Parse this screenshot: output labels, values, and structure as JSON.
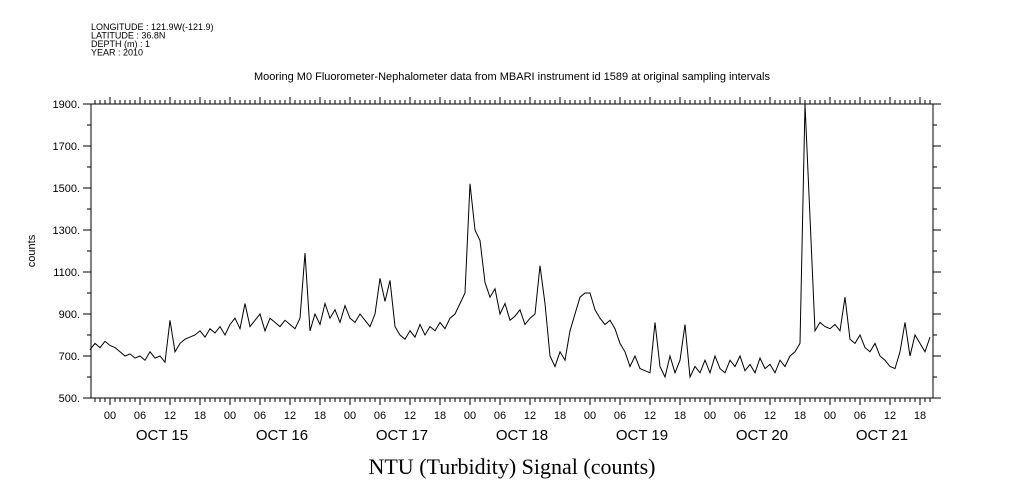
{
  "chart_data": {
    "type": "line",
    "meta": [
      "LONGITUDE : 121.9W(-121.9)",
      "LATITUDE : 36.8N",
      "DEPTH (m) : 1",
      "YEAR : 2010"
    ],
    "title": "Mooring M0 Fluorometer-Nephalometer data from MBARI instrument id 1589 at original sampling intervals",
    "xlabel": "NTU (Turbidity) Signal (counts)",
    "ylabel": "counts",
    "ylim": [
      500,
      1900
    ],
    "yticks": [
      500,
      700,
      900,
      1100,
      1300,
      1500,
      1700,
      1900
    ],
    "ytick_labels": [
      "500.",
      "700.",
      "900.",
      "1100.",
      "1300.",
      "1500.",
      "1700.",
      "1900."
    ],
    "x_unit": "hours since Oct 15 00:00",
    "xlim_hours": [
      -3.8,
      164.6
    ],
    "hour_tick_labels": [
      "00",
      "06",
      "12",
      "18"
    ],
    "day_labels": [
      "OCT 15",
      "OCT 16",
      "OCT 17",
      "OCT 18",
      "OCT 19",
      "OCT 20",
      "OCT 21"
    ],
    "x_start_hour": -4,
    "x_step_hours": 1,
    "values": [
      730,
      760,
      740,
      770,
      750,
      740,
      720,
      700,
      710,
      690,
      700,
      680,
      720,
      690,
      700,
      670,
      870,
      720,
      760,
      780,
      790,
      800,
      820,
      790,
      830,
      810,
      840,
      800,
      850,
      880,
      830,
      950,
      840,
      870,
      900,
      820,
      880,
      860,
      840,
      870,
      850,
      830,
      880,
      1190,
      820,
      900,
      850,
      950,
      880,
      920,
      860,
      940,
      880,
      860,
      900,
      870,
      840,
      900,
      1070,
      960,
      1060,
      840,
      800,
      780,
      820,
      790,
      850,
      800,
      840,
      820,
      860,
      830,
      880,
      900,
      950,
      1000,
      1520,
      1300,
      1250,
      1050,
      980,
      1020,
      900,
      950,
      870,
      890,
      920,
      850,
      880,
      900,
      1130,
      950,
      700,
      650,
      720,
      680,
      820,
      900,
      980,
      1000,
      1000,
      920,
      880,
      850,
      870,
      830,
      760,
      720,
      650,
      700,
      640,
      630,
      620,
      860,
      650,
      600,
      700,
      620,
      680,
      850,
      600,
      650,
      620,
      680,
      620,
      700,
      640,
      620,
      680,
      650,
      700,
      630,
      660,
      620,
      690,
      640,
      660,
      620,
      680,
      650,
      700,
      720,
      760,
      1900,
      1360,
      820,
      860,
      840,
      830,
      850,
      820,
      980,
      780,
      760,
      800,
      740,
      720,
      760,
      700,
      680,
      650,
      640,
      720,
      860,
      700,
      800,
      760,
      720,
      790
    ],
    "grid": false,
    "color": "#000000"
  }
}
